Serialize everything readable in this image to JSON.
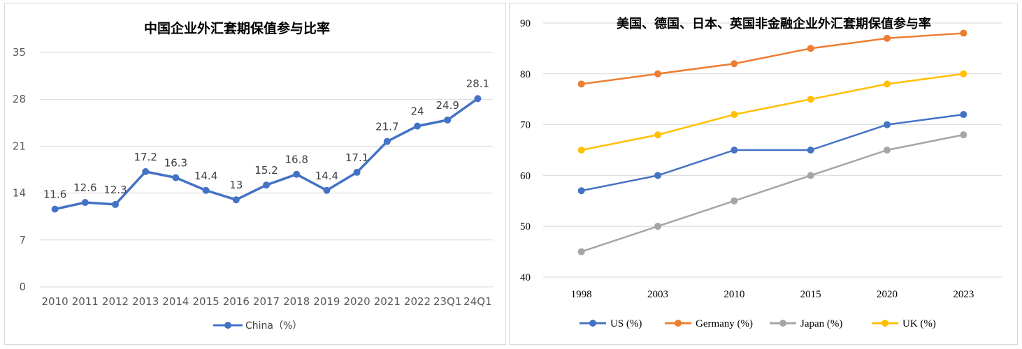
{
  "chart_data": [
    {
      "type": "line",
      "title": "中国企业外汇套期保值参与比率",
      "xlabel": "",
      "ylabel": "",
      "categories": [
        "2010",
        "2011",
        "2012",
        "2013",
        "2014",
        "2015",
        "2016",
        "2017",
        "2018",
        "2019",
        "2020",
        "2021",
        "2022",
        "23Q1",
        "24Q1"
      ],
      "series": [
        {
          "name": "China（%）",
          "values": [
            11.6,
            12.6,
            12.3,
            17.2,
            16.3,
            14.4,
            13,
            15.2,
            16.8,
            14.4,
            17.1,
            21.7,
            24,
            24.9,
            28.1
          ],
          "labels": [
            "11.6",
            "12.6",
            "12.3",
            "17.2",
            "16.3",
            "14.4",
            "13",
            "15.2",
            "16.8",
            "14.4",
            "17.1",
            "21.7",
            "24",
            "24.9",
            "28.1"
          ],
          "color": "#4472C4"
        }
      ],
      "ylim": [
        0,
        35
      ],
      "yticks": [
        "0",
        "7",
        "14",
        "21",
        "28",
        "35"
      ],
      "grid": true,
      "legend": "bottom"
    },
    {
      "type": "line",
      "title": "美国、德国、日本、英国非金融企业外汇套期保值参与率",
      "xlabel": "",
      "ylabel": "",
      "categories": [
        "1998",
        "2003",
        "2010",
        "2015",
        "2020",
        "2023"
      ],
      "series": [
        {
          "name": "US (%)",
          "values": [
            57,
            60,
            65,
            65,
            70,
            72
          ],
          "color": "#4472C4"
        },
        {
          "name": "Germany (%)",
          "values": [
            78,
            80,
            82,
            85,
            87,
            88
          ],
          "color": "#ED7D31"
        },
        {
          "name": "Japan (%)",
          "values": [
            45,
            50,
            55,
            60,
            65,
            68
          ],
          "color": "#A5A5A5"
        },
        {
          "name": "UK (%)",
          "values": [
            65,
            68,
            72,
            75,
            78,
            80
          ],
          "color": "#FFC000"
        }
      ],
      "ylim": [
        40,
        90
      ],
      "yticks": [
        "40",
        "50",
        "60",
        "70",
        "80",
        "90"
      ],
      "grid": true,
      "legend": "bottom"
    }
  ]
}
